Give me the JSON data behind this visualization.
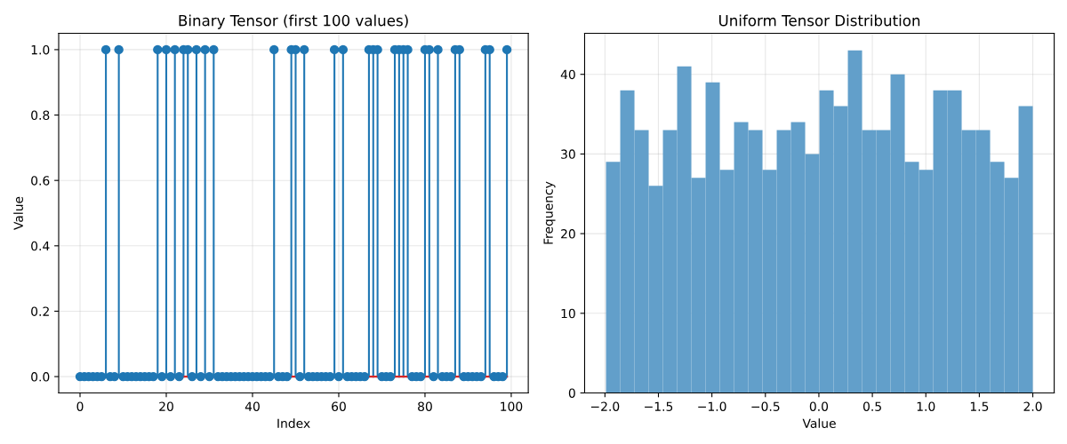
{
  "chart_data": [
    {
      "type": "lollipop",
      "title": "Binary Tensor (first 100 values)",
      "xlabel": "Index",
      "ylabel": "Value",
      "x": [
        0,
        1,
        2,
        3,
        4,
        5,
        6,
        7,
        8,
        9,
        10,
        11,
        12,
        13,
        14,
        15,
        16,
        17,
        18,
        19,
        20,
        21,
        22,
        23,
        24,
        25,
        26,
        27,
        28,
        29,
        30,
        31,
        32,
        33,
        34,
        35,
        36,
        37,
        38,
        39,
        40,
        41,
        42,
        43,
        44,
        45,
        46,
        47,
        48,
        49,
        50,
        51,
        52,
        53,
        54,
        55,
        56,
        57,
        58,
        59,
        60,
        61,
        62,
        63,
        64,
        65,
        66,
        67,
        68,
        69,
        70,
        71,
        72,
        73,
        74,
        75,
        76,
        77,
        78,
        79,
        80,
        81,
        82,
        83,
        84,
        85,
        86,
        87,
        88,
        89,
        90,
        91,
        92,
        93,
        94,
        95,
        96,
        97,
        98,
        99
      ],
      "values": [
        0,
        0,
        0,
        0,
        0,
        0,
        1,
        0,
        0,
        1,
        0,
        0,
        0,
        0,
        0,
        0,
        0,
        0,
        1,
        0,
        1,
        0,
        1,
        0,
        1,
        1,
        0,
        1,
        0,
        1,
        0,
        1,
        0,
        0,
        0,
        0,
        0,
        0,
        0,
        0,
        0,
        0,
        0,
        0,
        0,
        1,
        0,
        0,
        0,
        1,
        1,
        0,
        1,
        0,
        0,
        0,
        0,
        0,
        0,
        1,
        0,
        1,
        0,
        0,
        0,
        0,
        0,
        1,
        1,
        1,
        0,
        0,
        0,
        1,
        1,
        1,
        1,
        0,
        0,
        0,
        1,
        1,
        0,
        1,
        0,
        0,
        0,
        1,
        1,
        0,
        0,
        0,
        0,
        0,
        1,
        1,
        0,
        0,
        0,
        1
      ],
      "color": "#1f77b4",
      "marker": "circle",
      "ref_lines": [
        {
          "axis": "y",
          "value": 0,
          "color": "#d62728"
        }
      ],
      "xlim": [
        -4.95,
        103.95
      ],
      "xticks": [
        0,
        20,
        40,
        60,
        80,
        100
      ],
      "ylim": [
        -0.05,
        1.05
      ],
      "yticks": [
        {
          "value": 0,
          "label": "0.0"
        },
        0.2,
        0.4,
        0.6,
        0.8,
        {
          "value": 1,
          "label": "1.0"
        }
      ],
      "grid": true
    },
    {
      "type": "histogram",
      "title": "Uniform Tensor Distribution",
      "xlabel": "Value",
      "ylabel": "Frequency",
      "bins": [
        -1.99,
        -1.857,
        -1.724,
        -1.591,
        -1.458,
        -1.325,
        -1.192,
        -1.059,
        -0.926,
        -0.793,
        -0.66,
        -0.527,
        -0.394,
        -0.261,
        -0.128,
        0.005,
        0.138,
        0.271,
        0.404,
        0.537,
        0.67,
        0.803,
        0.936,
        1.069,
        1.202,
        1.335,
        1.468,
        1.601,
        1.734,
        1.867,
        2.0
      ],
      "values": [
        29,
        38,
        33,
        26,
        33,
        41,
        27,
        39,
        28,
        34,
        33,
        28,
        33,
        34,
        30,
        38,
        36,
        43,
        33,
        33,
        40,
        29,
        28,
        38,
        38,
        33,
        33,
        29,
        27,
        36
      ],
      "color": "#629fca",
      "xlim": [
        -2.19,
        2.2
      ],
      "xticks": [
        {
          "value": -2.0,
          "label": "−2.0"
        },
        {
          "value": -1.5,
          "label": "−1.5"
        },
        {
          "value": -1.0,
          "label": "−1.0"
        },
        {
          "value": -0.5,
          "label": "−0.5"
        },
        {
          "value": 0.0,
          "label": "0.0"
        },
        {
          "value": 0.5,
          "label": "0.5"
        },
        {
          "value": 1.0,
          "label": "1.0"
        },
        {
          "value": 1.5,
          "label": "1.5"
        },
        {
          "value": 2.0,
          "label": "2.0"
        }
      ],
      "ylim": [
        0,
        45.15
      ],
      "yticks": [
        0,
        10,
        20,
        30,
        40
      ],
      "grid": true
    }
  ]
}
